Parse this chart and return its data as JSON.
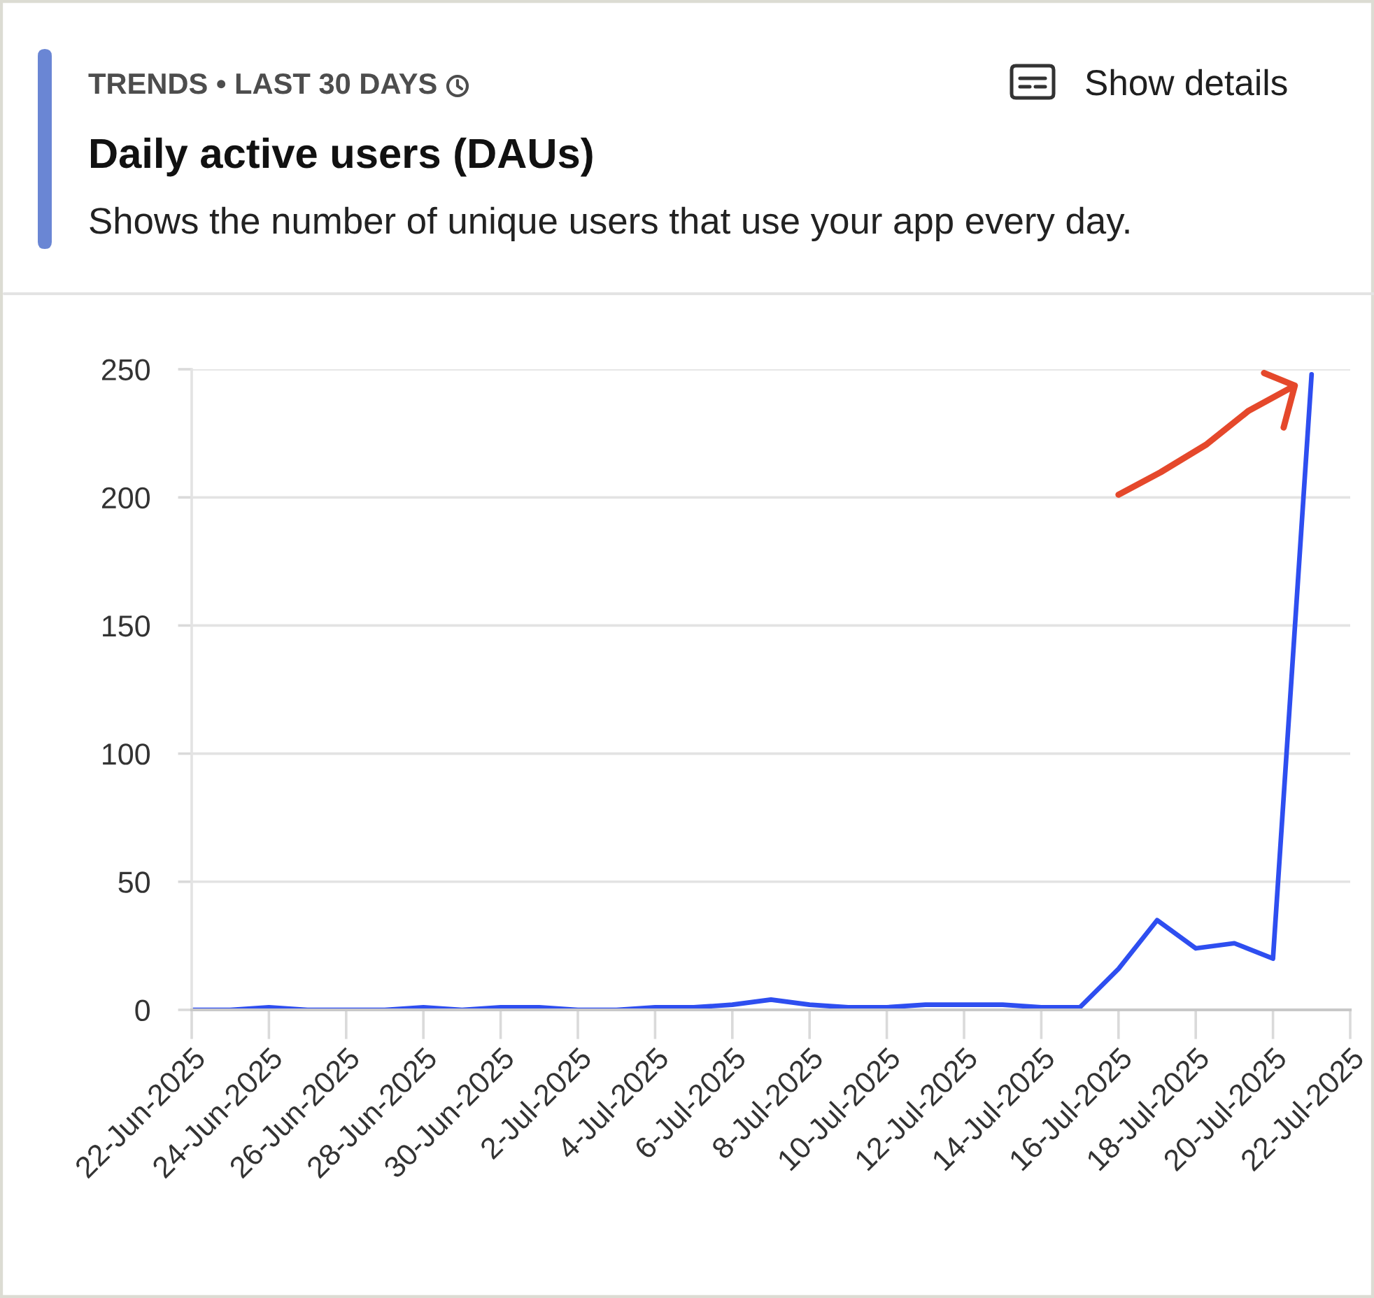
{
  "chart_data": {
    "type": "line",
    "title": "Daily active users (DAUs)",
    "subtitle": "Shows the number of unique users that use your app every day.",
    "annotations": [
      "TRENDS • LAST 30 DAYS",
      "Show details"
    ],
    "x": [
      "2025-06-22",
      "2025-06-23",
      "2025-06-24",
      "2025-06-25",
      "2025-06-26",
      "2025-06-27",
      "2025-06-28",
      "2025-06-29",
      "2025-06-30",
      "2025-07-01",
      "2025-07-02",
      "2025-07-03",
      "2025-07-04",
      "2025-07-05",
      "2025-07-06",
      "2025-07-07",
      "2025-07-08",
      "2025-07-09",
      "2025-07-10",
      "2025-07-11",
      "2025-07-12",
      "2025-07-13",
      "2025-07-14",
      "2025-07-15",
      "2025-07-16",
      "2025-07-17",
      "2025-07-18",
      "2025-07-19",
      "2025-07-20",
      "2025-07-21"
    ],
    "series": [
      {
        "color": "#2e4ef0",
        "values": [
          0,
          0,
          1,
          0,
          0,
          0,
          1,
          0,
          1,
          1,
          0,
          0,
          1,
          1,
          2,
          4,
          2,
          1,
          1,
          2,
          2,
          2,
          1,
          1,
          16,
          35,
          24,
          26,
          20,
          248
        ]
      }
    ],
    "xlim": [
      "2025-06-22",
      "2025-07-22"
    ],
    "xticks": [
      {
        "value": "2025-06-22",
        "label": "22-Jun-2025"
      },
      {
        "value": "2025-06-24",
        "label": "24-Jun-2025"
      },
      {
        "value": "2025-06-26",
        "label": "26-Jun-2025"
      },
      {
        "value": "2025-06-28",
        "label": "28-Jun-2025"
      },
      {
        "value": "2025-06-30",
        "label": "30-Jun-2025"
      },
      {
        "value": "2025-07-02",
        "label": "2-Jul-2025"
      },
      {
        "value": "2025-07-04",
        "label": "4-Jul-2025"
      },
      {
        "value": "2025-07-06",
        "label": "6-Jul-2025"
      },
      {
        "value": "2025-07-08",
        "label": "8-Jul-2025"
      },
      {
        "value": "2025-07-10",
        "label": "10-Jul-2025"
      },
      {
        "value": "2025-07-12",
        "label": "12-Jul-2025"
      },
      {
        "value": "2025-07-14",
        "label": "14-Jul-2025"
      },
      {
        "value": "2025-07-16",
        "label": "16-Jul-2025"
      },
      {
        "value": "2025-07-18",
        "label": "18-Jul-2025"
      },
      {
        "value": "2025-07-20",
        "label": "20-Jul-2025"
      },
      {
        "value": "2025-07-22",
        "label": "22-Jul-2025"
      }
    ],
    "ylim": [
      0,
      250
    ],
    "yticks": [
      0,
      50,
      100,
      150,
      200,
      250
    ],
    "grid": "y",
    "line_style": "solid"
  }
}
